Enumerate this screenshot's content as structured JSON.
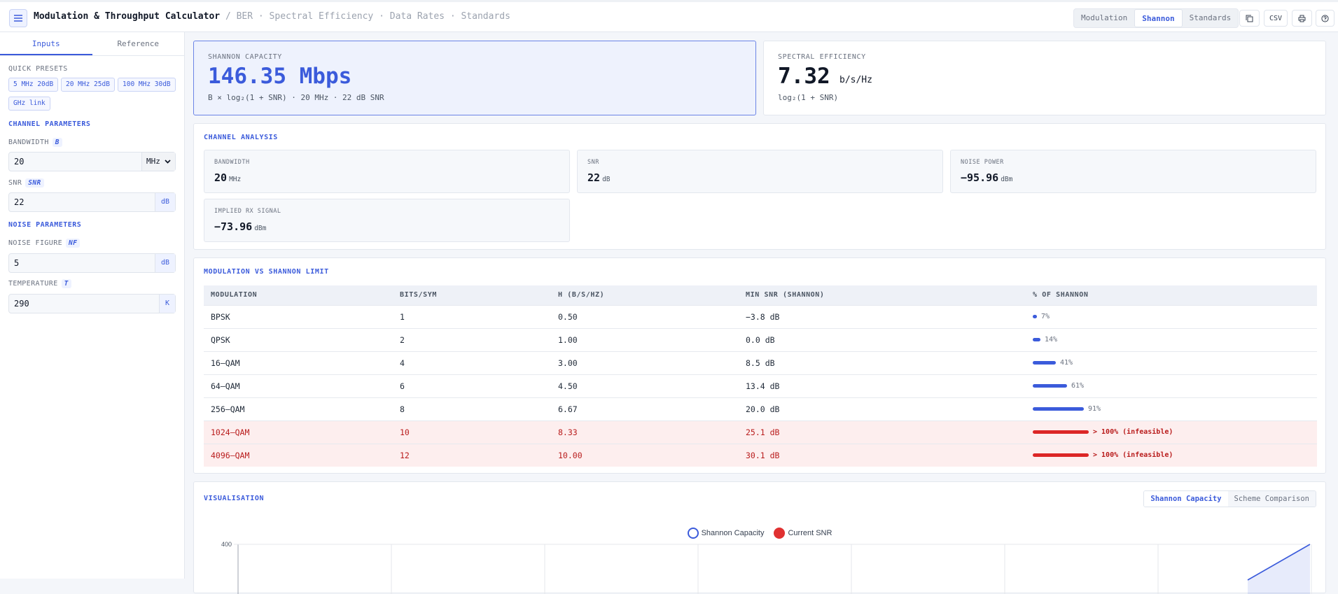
{
  "header": {
    "title": "Modulation & Throughput Calculator",
    "crumbs": "/ BER · Spectral Efficiency · Data Rates · Standards",
    "modes": [
      "Modulation",
      "Shannon",
      "Standards"
    ],
    "csv_label": "CSV"
  },
  "sidebar": {
    "tabs": [
      "Inputs",
      "Reference"
    ],
    "quick_presets_title": "QUICK PRESETS",
    "presets": [
      "5 MHz 20dB",
      "20 MHz 25dB",
      "100 MHz 30dB",
      "GHz link"
    ],
    "channel_title": "CHANNEL PARAMETERS",
    "bandwidth": {
      "label": "BANDWIDTH",
      "sym": "B",
      "value": "20",
      "unit": "MHz"
    },
    "snr": {
      "label": "SNR",
      "sym": "SNR",
      "value": "22",
      "unit": "dB"
    },
    "noise_title": "NOISE PARAMETERS",
    "noise_figure": {
      "label": "NOISE FIGURE",
      "sym": "NF",
      "value": "5",
      "unit": "dB"
    },
    "temperature": {
      "label": "TEMPERATURE",
      "sym": "T",
      "value": "290",
      "unit": "K"
    }
  },
  "kpi": {
    "capacity": {
      "label": "SHANNON CAPACITY",
      "value": "146.35 Mbps",
      "formula": "B × log₂(1 + SNR) · 20 MHz · 22 dB SNR"
    },
    "efficiency": {
      "label": "SPECTRAL EFFICIENCY",
      "value": "7.32",
      "unit": "b/s/Hz",
      "formula": "log₂(1 + SNR)"
    }
  },
  "analysis": {
    "title": "CHANNEL ANALYSIS",
    "items": [
      {
        "label": "BANDWIDTH",
        "value": "20",
        "unit": "MHz"
      },
      {
        "label": "SNR",
        "value": "22",
        "unit": "dB"
      },
      {
        "label": "NOISE POWER",
        "value": "−95.96",
        "unit": "dBm"
      },
      {
        "label": "IMPLIED RX SIGNAL",
        "value": "−73.96",
        "unit": "dBm"
      }
    ]
  },
  "comparison": {
    "title": "MODULATION VS SHANNON LIMIT",
    "columns": [
      "MODULATION",
      "BITS/SYM",
      "Η (B/S/HZ)",
      "MIN SNR (SHANNON)",
      "% OF SHANNON"
    ],
    "rows": [
      {
        "mod": "BPSK",
        "bits": "1",
        "eta": "0.50",
        "snr": "−3.8 dB",
        "pct": "7%",
        "fill": 0.07,
        "bad": false
      },
      {
        "mod": "QPSK",
        "bits": "2",
        "eta": "1.00",
        "snr": "0.0 dB",
        "pct": "14%",
        "fill": 0.14,
        "bad": false
      },
      {
        "mod": "16–QAM",
        "bits": "4",
        "eta": "3.00",
        "snr": "8.5 dB",
        "pct": "41%",
        "fill": 0.41,
        "bad": false
      },
      {
        "mod": "64–QAM",
        "bits": "6",
        "eta": "4.50",
        "snr": "13.4 dB",
        "pct": "61%",
        "fill": 0.61,
        "bad": false
      },
      {
        "mod": "256–QAM",
        "bits": "8",
        "eta": "6.67",
        "snr": "20.0 dB",
        "pct": "91%",
        "fill": 0.91,
        "bad": false
      },
      {
        "mod": "1024–QAM",
        "bits": "10",
        "eta": "8.33",
        "snr": "25.1 dB",
        "pct": "> 100% (infeasible)",
        "fill": 1.0,
        "bad": true
      },
      {
        "mod": "4096–QAM",
        "bits": "12",
        "eta": "10.00",
        "snr": "30.1 dB",
        "pct": "> 100% (infeasible)",
        "fill": 1.0,
        "bad": true
      }
    ]
  },
  "visual": {
    "title": "VISUALISATION",
    "tabs": [
      "Shannon Capacity",
      "Scheme Comparison"
    ],
    "legend": [
      "Shannon Capacity",
      "Current SNR"
    ],
    "colors": {
      "capacity": "#3b5bdb",
      "snr": "#e03131"
    }
  },
  "chart_data": {
    "type": "line",
    "series": [
      {
        "name": "Shannon Capacity",
        "color": "#3b5bdb"
      }
    ],
    "ytick_visible": "400"
  }
}
